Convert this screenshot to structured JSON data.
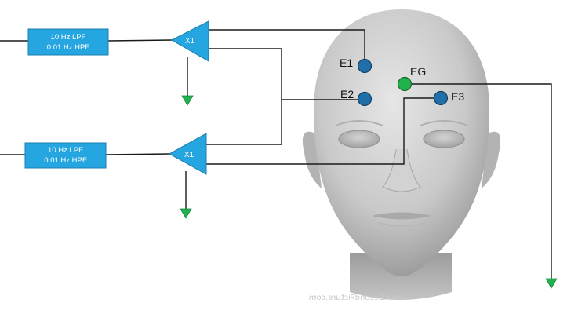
{
  "filters": [
    {
      "lpf_label": "10 Hz LPF",
      "hpf_label": "0.01 Hz HPF"
    },
    {
      "lpf_label": "10 Hz LPF",
      "hpf_label": "0.01 Hz HPF"
    }
  ],
  "amplifiers": [
    {
      "gain_label": "X1"
    },
    {
      "gain_label": "X1"
    }
  ],
  "electrodes": [
    {
      "label": "E1",
      "color": "#1f6fa8"
    },
    {
      "label": "E2",
      "color": "#1f6fa8"
    },
    {
      "label": "E3",
      "color": "#1f6fa8"
    },
    {
      "label": "EG",
      "color": "#22b24c"
    }
  ],
  "colors": {
    "filter_fill": "#26a6e0",
    "ground_symbol": "#1fb24f",
    "wire": "#1a1a1a"
  },
  "watermark": "www.SecondPicture.com"
}
